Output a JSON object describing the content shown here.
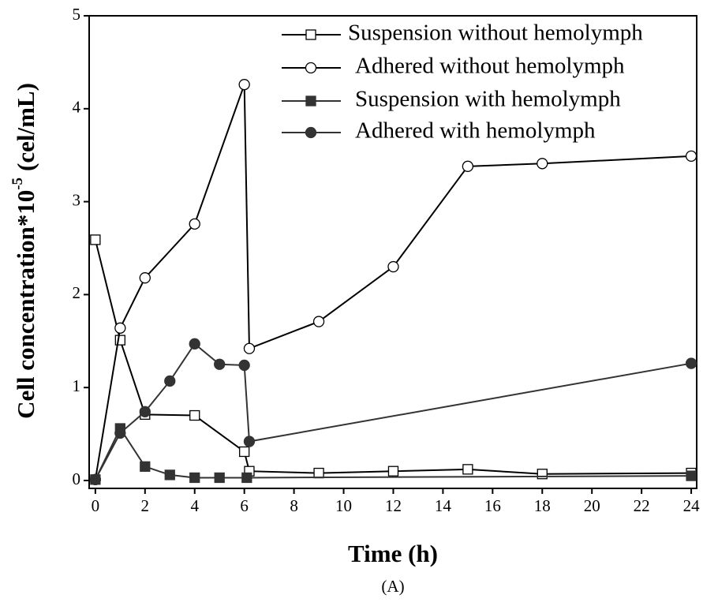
{
  "chart_data": {
    "type": "line",
    "xlabel": "Time (h)",
    "ylabel": [
      "Cell concentration*10",
      "-5",
      "(cel/mL)"
    ],
    "caption": "(A)",
    "xlim": [
      -0.25,
      24.22
    ],
    "ylim": [
      -0.085,
      5
    ],
    "xticks": [
      0,
      2,
      4,
      6,
      8,
      10,
      12,
      14,
      16,
      18,
      20,
      22,
      24
    ],
    "yticks": [
      0,
      1,
      2,
      3,
      4,
      5
    ],
    "legend": "upper right",
    "series": [
      {
        "name": "Suspension without hemolymph",
        "color": "#000000",
        "marker": "square",
        "filled": false,
        "x": [
          0,
          1,
          2,
          4,
          6,
          6.2,
          9,
          12,
          15,
          18,
          24
        ],
        "values": [
          2.59,
          1.51,
          0.71,
          0.7,
          0.31,
          0.1,
          0.08,
          0.1,
          0.12,
          0.07,
          0.08
        ]
      },
      {
        "name": "Adhered without hemolymph",
        "color": "#000000",
        "marker": "circle",
        "filled": false,
        "x": [
          0,
          1,
          2,
          4,
          6,
          6.2,
          9,
          12,
          15,
          18,
          24
        ],
        "values": [
          0.01,
          1.64,
          2.18,
          2.76,
          4.26,
          1.42,
          1.71,
          2.3,
          3.38,
          3.41,
          3.49
        ]
      },
      {
        "name": "Suspension with hemolymph",
        "color": "#333333",
        "marker": "square",
        "filled": true,
        "x": [
          0,
          1,
          2,
          3,
          4,
          5,
          6.1,
          24
        ],
        "values": [
          0.01,
          0.56,
          0.15,
          0.06,
          0.03,
          0.03,
          0.03,
          0.05
        ]
      },
      {
        "name": "Adhered with hemolymph",
        "color": "#333333",
        "marker": "circle",
        "filled": true,
        "x": [
          0,
          1,
          2,
          3,
          4,
          5,
          6,
          6.2,
          24
        ],
        "values": [
          0.01,
          0.51,
          0.74,
          1.07,
          1.47,
          1.25,
          1.24,
          0.42,
          1.26
        ]
      }
    ]
  }
}
